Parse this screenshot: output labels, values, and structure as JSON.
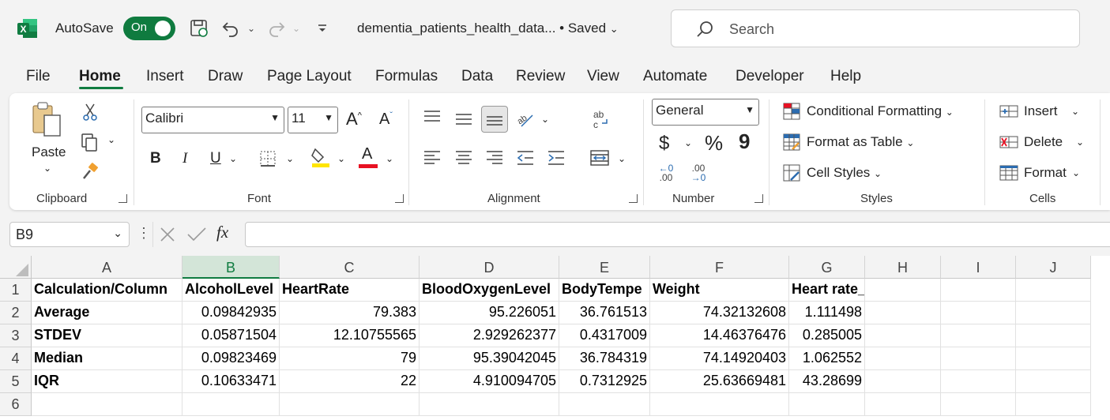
{
  "titlebar": {
    "autosave_label": "AutoSave",
    "autosave_state": "On",
    "filename": "dementia_patients_health_data...",
    "save_status": "• Saved",
    "search_placeholder": "Search"
  },
  "tabs": [
    "File",
    "Home",
    "Insert",
    "Draw",
    "Page Layout",
    "Formulas",
    "Data",
    "Review",
    "View",
    "Automate",
    "Developer",
    "Help"
  ],
  "active_tab": "Home",
  "ribbon": {
    "clipboard": {
      "label": "Clipboard",
      "paste": "Paste"
    },
    "font": {
      "label": "Font",
      "font_name": "Calibri",
      "font_size": "11",
      "bold": "B",
      "italic": "I",
      "underline": "U",
      "grow": "A",
      "shrink": "A",
      "font_color": "A"
    },
    "alignment": {
      "label": "Alignment",
      "wrap": "ab"
    },
    "number": {
      "label": "Number",
      "format": "General",
      "currency": "$",
      "percent": "%",
      "comma": "9",
      "inc_dec": ".00",
      "dec_dec": ".00"
    },
    "styles": {
      "label": "Styles",
      "conditional": "Conditional Formatting",
      "table": "Format as Table",
      "cell_styles": "Cell Styles"
    },
    "cells": {
      "label": "Cells",
      "insert": "Insert",
      "delete": "Delete",
      "format": "Format"
    }
  },
  "formula_bar": {
    "name_box": "B9",
    "fx": "fx",
    "formula": ""
  },
  "sheet": {
    "selected_col": "B",
    "columns": [
      "A",
      "B",
      "C",
      "D",
      "E",
      "F",
      "G",
      "H",
      "I",
      "J"
    ],
    "rows": [
      [
        "Calculation/Column",
        "AlcoholLevel",
        "HeartRate",
        "BloodOxygenLevel",
        "BodyTempe",
        "Weight",
        "Heart rate_per_kg",
        "",
        "",
        ""
      ],
      [
        "Average",
        "0.09842935",
        "79.383",
        "95.226051",
        "36.761513",
        "74.32132608",
        "1.111498",
        "",
        "",
        ""
      ],
      [
        "STDEV",
        "0.05871504",
        "12.10755565",
        "2.929262377",
        "0.4317009",
        "14.46376476",
        "0.285005",
        "",
        "",
        ""
      ],
      [
        "Median",
        "0.09823469",
        "79",
        "95.39042045",
        "36.784319",
        "74.14920403",
        "1.062552",
        "",
        "",
        ""
      ],
      [
        "IQR",
        "0.10633471",
        "22",
        "4.910094705",
        "0.7312925",
        "25.63669481",
        "43.28699",
        "",
        "",
        ""
      ],
      [
        "",
        "",
        "",
        "",
        "",
        "",
        "",
        "",
        "",
        ""
      ]
    ],
    "row_numbers": [
      "1",
      "2",
      "3",
      "4",
      "5",
      "6"
    ]
  }
}
